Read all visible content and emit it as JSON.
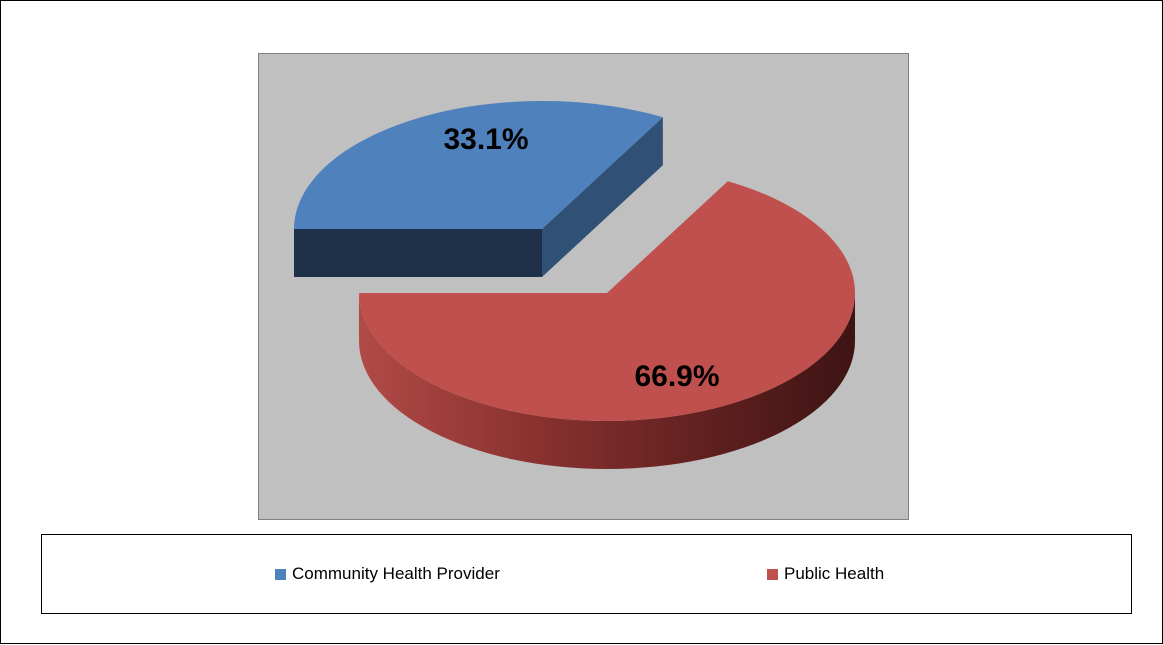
{
  "chart_data": {
    "type": "pie",
    "title": "",
    "style": "3d-exploded",
    "legend_position": "bottom",
    "series": [
      {
        "values": [
          33.1,
          66.9
        ]
      }
    ],
    "categories": [
      "Community Health Provider",
      "Public Health"
    ],
    "slices": [
      {
        "label": "Community Health Provider",
        "value": 33.1,
        "data_label": "33.1%",
        "color": "#4f81bd"
      },
      {
        "label": "Public Health",
        "value": 66.9,
        "data_label": "66.9%",
        "color": "#c0504d"
      }
    ]
  },
  "legend": {
    "items": [
      {
        "label": "Community Health Provider",
        "color": "#4f81bd"
      },
      {
        "label": "Public Health",
        "color": "#c0504d"
      }
    ]
  },
  "colors": {
    "plot_background": "#c0c0c0",
    "chart_background": "#ffffff"
  }
}
